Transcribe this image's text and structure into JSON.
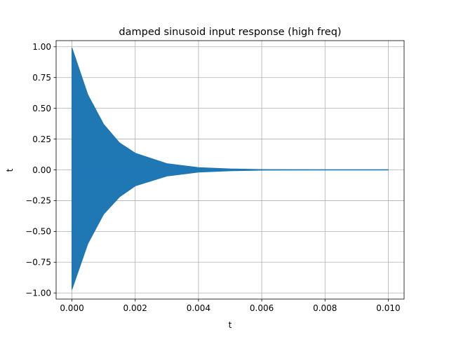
{
  "chart_data": {
    "type": "line",
    "title": "damped sinusoid input response (high freq)",
    "xlabel": "t",
    "ylabel": "t",
    "xlim": [
      -0.0005,
      0.0105
    ],
    "ylim": [
      -1.05,
      1.05
    ],
    "x_ticks": [
      0.0,
      0.002,
      0.004,
      0.006,
      0.008,
      0.01
    ],
    "x_tick_labels": [
      "0.000",
      "0.002",
      "0.004",
      "0.006",
      "0.008",
      "0.010"
    ],
    "y_ticks": [
      -1.0,
      -0.75,
      -0.5,
      -0.25,
      0.0,
      0.25,
      0.5,
      0.75,
      1.0
    ],
    "y_tick_labels": [
      "−1.00",
      "−0.75",
      "−0.50",
      "−0.25",
      "0.00",
      "0.25",
      "0.50",
      "0.75",
      "1.00"
    ],
    "grid": true,
    "series": [
      {
        "color": "#1f77b4",
        "x_start": 0.0,
        "x_end": 0.01,
        "envelope_upper": [
          [
            0.0,
            0.99
          ],
          [
            0.0005,
            0.61
          ],
          [
            0.001,
            0.37
          ],
          [
            0.0015,
            0.22
          ],
          [
            0.002,
            0.135
          ],
          [
            0.003,
            0.05
          ],
          [
            0.004,
            0.018
          ],
          [
            0.005,
            0.007
          ],
          [
            0.006,
            0.002
          ],
          [
            0.008,
            0.0
          ],
          [
            0.01,
            0.0
          ]
        ],
        "envelope_lower": [
          [
            0.0,
            -0.97
          ],
          [
            0.0005,
            -0.6
          ],
          [
            0.001,
            -0.36
          ],
          [
            0.0015,
            -0.22
          ],
          [
            0.002,
            -0.13
          ],
          [
            0.003,
            -0.05
          ],
          [
            0.004,
            -0.018
          ],
          [
            0.005,
            -0.007
          ],
          [
            0.006,
            -0.002
          ],
          [
            0.008,
            0.0
          ],
          [
            0.01,
            0.0
          ]
        ]
      }
    ]
  }
}
